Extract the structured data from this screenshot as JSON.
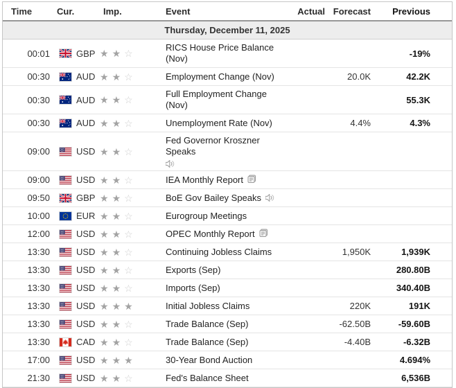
{
  "table": {
    "columns": {
      "time": "Time",
      "cur": "Cur.",
      "imp": "Imp.",
      "event": "Event",
      "actual": "Actual",
      "forecast": "Forecast",
      "previous": "Previous"
    },
    "date_header": "Thursday, December 11, 2025",
    "rows": [
      {
        "time": "00:01",
        "currency": "GBP",
        "flag": "gb",
        "importance": 2,
        "event": "RICS House Price Balance (Nov)",
        "icon": null,
        "icon_newline": false,
        "actual": "",
        "forecast": "",
        "previous": "-19%"
      },
      {
        "time": "00:30",
        "currency": "AUD",
        "flag": "au",
        "importance": 2,
        "event": "Employment Change (Nov)",
        "icon": null,
        "icon_newline": false,
        "actual": "",
        "forecast": "20.0K",
        "previous": "42.2K"
      },
      {
        "time": "00:30",
        "currency": "AUD",
        "flag": "au",
        "importance": 2,
        "event": "Full Employment Change (Nov)",
        "icon": null,
        "icon_newline": false,
        "actual": "",
        "forecast": "",
        "previous": "55.3K"
      },
      {
        "time": "00:30",
        "currency": "AUD",
        "flag": "au",
        "importance": 2,
        "event": "Unemployment Rate (Nov)",
        "icon": null,
        "icon_newline": false,
        "actual": "",
        "forecast": "4.4%",
        "previous": "4.3%"
      },
      {
        "time": "09:00",
        "currency": "USD",
        "flag": "us",
        "importance": 2,
        "event": "Fed Governor Kroszner Speaks",
        "icon": "speaker",
        "icon_newline": true,
        "actual": "",
        "forecast": "",
        "previous": ""
      },
      {
        "time": "09:00",
        "currency": "USD",
        "flag": "us",
        "importance": 2,
        "event": "IEA Monthly Report",
        "icon": "report",
        "icon_newline": false,
        "actual": "",
        "forecast": "",
        "previous": ""
      },
      {
        "time": "09:50",
        "currency": "GBP",
        "flag": "gb",
        "importance": 2,
        "event": "BoE Gov Bailey Speaks",
        "icon": "speaker",
        "icon_newline": false,
        "actual": "",
        "forecast": "",
        "previous": ""
      },
      {
        "time": "10:00",
        "currency": "EUR",
        "flag": "eu",
        "importance": 2,
        "event": "Eurogroup Meetings",
        "icon": null,
        "icon_newline": false,
        "actual": "",
        "forecast": "",
        "previous": ""
      },
      {
        "time": "12:00",
        "currency": "USD",
        "flag": "us",
        "importance": 2,
        "event": "OPEC Monthly Report",
        "icon": "report",
        "icon_newline": false,
        "actual": "",
        "forecast": "",
        "previous": ""
      },
      {
        "time": "13:30",
        "currency": "USD",
        "flag": "us",
        "importance": 2,
        "event": "Continuing Jobless Claims",
        "icon": null,
        "icon_newline": false,
        "actual": "",
        "forecast": "1,950K",
        "previous": "1,939K"
      },
      {
        "time": "13:30",
        "currency": "USD",
        "flag": "us",
        "importance": 2,
        "event": "Exports (Sep)",
        "icon": null,
        "icon_newline": false,
        "actual": "",
        "forecast": "",
        "previous": "280.80B"
      },
      {
        "time": "13:30",
        "currency": "USD",
        "flag": "us",
        "importance": 2,
        "event": "Imports (Sep)",
        "icon": null,
        "icon_newline": false,
        "actual": "",
        "forecast": "",
        "previous": "340.40B"
      },
      {
        "time": "13:30",
        "currency": "USD",
        "flag": "us",
        "importance": 3,
        "event": "Initial Jobless Claims",
        "icon": null,
        "icon_newline": false,
        "actual": "",
        "forecast": "220K",
        "previous": "191K"
      },
      {
        "time": "13:30",
        "currency": "USD",
        "flag": "us",
        "importance": 2,
        "event": "Trade Balance (Sep)",
        "icon": null,
        "icon_newline": false,
        "actual": "",
        "forecast": "-62.50B",
        "previous": "-59.60B"
      },
      {
        "time": "13:30",
        "currency": "CAD",
        "flag": "ca",
        "importance": 2,
        "event": "Trade Balance (Sep)",
        "icon": null,
        "icon_newline": false,
        "actual": "",
        "forecast": "-4.40B",
        "previous": "-6.32B"
      },
      {
        "time": "17:00",
        "currency": "USD",
        "flag": "us",
        "importance": 3,
        "event": "30-Year Bond Auction",
        "icon": null,
        "icon_newline": false,
        "actual": "",
        "forecast": "",
        "previous": "4.694%"
      },
      {
        "time": "21:30",
        "currency": "USD",
        "flag": "us",
        "importance": 2,
        "event": "Fed's Balance Sheet",
        "icon": null,
        "icon_newline": false,
        "actual": "",
        "forecast": "",
        "previous": "6,536B"
      }
    ]
  },
  "colors": {
    "date_row_bg": "#ededed",
    "star_filled": "#a3a3a3",
    "star_empty": "#cfcfcf",
    "border": "#c5c5c5",
    "header_border": "#979797",
    "previous_text": "#141414"
  }
}
